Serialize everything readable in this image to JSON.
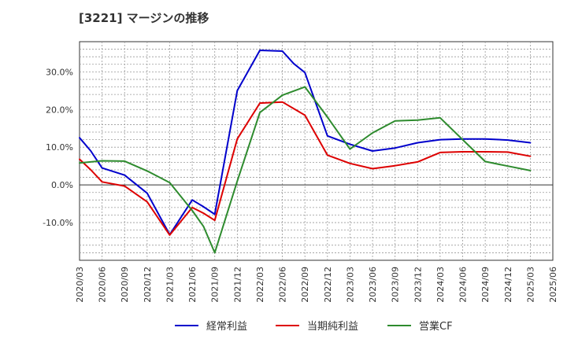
{
  "chart_data": {
    "type": "line",
    "title": "[3221]  マージンの推移",
    "x": [
      "2020/03",
      "2020/06",
      "2020/09",
      "2020/12",
      "2021/03",
      "2021/06",
      "2021/09",
      "2021/12",
      "2022/03",
      "2022/06",
      "2022/09",
      "2022/12",
      "2023/03",
      "2023/06",
      "2023/09",
      "2023/12",
      "2024/03",
      "2024/06",
      "2024/09",
      "2024/12",
      "2025/03",
      "2025/06"
    ],
    "ylim": [
      -20,
      38
    ],
    "yticks": [
      {
        "value": 30,
        "label": "30.0%"
      },
      {
        "value": 20,
        "label": "20.0%"
      },
      {
        "value": 10,
        "label": "10.0%"
      },
      {
        "value": 0,
        "label": "0.0%"
      },
      {
        "value": -10,
        "label": "-10.0%"
      }
    ],
    "grid": true,
    "legend_position": "bottom",
    "series": [
      {
        "name": "経常利益",
        "color": "#0000cc",
        "points": [
          [
            0,
            12.5
          ],
          [
            0.5,
            9.0
          ],
          [
            1,
            4.5
          ],
          [
            2,
            2.6
          ],
          [
            3,
            -2.2
          ],
          [
            4,
            -13.2
          ],
          [
            5,
            -4.0
          ],
          [
            5.5,
            -5.8
          ],
          [
            6,
            -7.8
          ],
          [
            7,
            25.0
          ],
          [
            8,
            35.7
          ],
          [
            9,
            35.5
          ],
          [
            9.5,
            32.2
          ],
          [
            10,
            29.8
          ],
          [
            11,
            13.0
          ],
          [
            12,
            10.8
          ],
          [
            13,
            9.0
          ],
          [
            14,
            9.8
          ],
          [
            15,
            11.2
          ],
          [
            16,
            12.0
          ],
          [
            17,
            12.2
          ],
          [
            18,
            12.2
          ],
          [
            19,
            11.9
          ],
          [
            20,
            11.2
          ]
        ]
      },
      {
        "name": "当期純利益",
        "color": "#dd0000",
        "points": [
          [
            0,
            6.8
          ],
          [
            0.5,
            4.0
          ],
          [
            1,
            0.8
          ],
          [
            2,
            -0.3
          ],
          [
            3,
            -4.5
          ],
          [
            4,
            -13.3
          ],
          [
            5,
            -6.0
          ],
          [
            5.5,
            -7.5
          ],
          [
            6,
            -9.4
          ],
          [
            7,
            12.2
          ],
          [
            8,
            21.7
          ],
          [
            9,
            22.0
          ],
          [
            10,
            18.5
          ],
          [
            11,
            7.9
          ],
          [
            12,
            5.7
          ],
          [
            13,
            4.3
          ],
          [
            14,
            5.1
          ],
          [
            15,
            6.1
          ],
          [
            16,
            8.6
          ],
          [
            17,
            8.8
          ],
          [
            18,
            8.8
          ],
          [
            19,
            8.7
          ],
          [
            20,
            7.6
          ]
        ]
      },
      {
        "name": "営業CF",
        "color": "#2e8b2e",
        "points": [
          [
            0,
            5.8
          ],
          [
            1,
            6.4
          ],
          [
            2,
            6.3
          ],
          [
            3,
            3.7
          ],
          [
            4,
            0.6
          ],
          [
            5,
            -6.8
          ],
          [
            5.5,
            -11.0
          ],
          [
            6,
            -18.0
          ],
          [
            7,
            1.0
          ],
          [
            8,
            19.2
          ],
          [
            9,
            23.8
          ],
          [
            10,
            26.0
          ],
          [
            11,
            18.0
          ],
          [
            12,
            9.5
          ],
          [
            13,
            13.8
          ],
          [
            14,
            17.0
          ],
          [
            15,
            17.2
          ],
          [
            16,
            17.8
          ],
          [
            17,
            12.0
          ],
          [
            18,
            6.2
          ],
          [
            19,
            5.0
          ],
          [
            20,
            3.8
          ]
        ]
      }
    ]
  }
}
